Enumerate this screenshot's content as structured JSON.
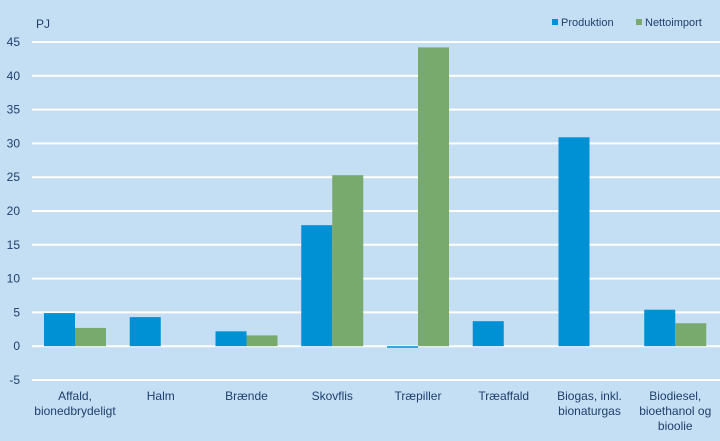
{
  "chart_data": {
    "type": "bar",
    "ylabel": "PJ",
    "ylim": [
      -5,
      45
    ],
    "yticks": [
      -5,
      0,
      5,
      10,
      15,
      20,
      25,
      30,
      35,
      40,
      45
    ],
    "grid": true,
    "legend_position": "top-right",
    "categories": [
      [
        "Affald,",
        "bionedbrydeligt"
      ],
      [
        "Halm"
      ],
      [
        "Brænde"
      ],
      [
        "Skovflis"
      ],
      [
        "Træpiller"
      ],
      [
        "Træaffald"
      ],
      [
        "Biogas, inkl.",
        "bionaturgas"
      ],
      [
        "Biodiesel,",
        "bioethanol og",
        "bioolie"
      ]
    ],
    "series": [
      {
        "name": "Produktion",
        "color": "#0090d4",
        "values": [
          4.9,
          4.3,
          2.2,
          17.9,
          -0.2,
          3.7,
          30.9,
          5.4
        ]
      },
      {
        "name": "Nettoimport",
        "color": "#78aa6e",
        "values": [
          2.7,
          0,
          1.6,
          25.3,
          44.2,
          0,
          0,
          3.4
        ]
      }
    ]
  },
  "colors": {
    "background": "#c4def3",
    "grid": "#ffffff",
    "text": "#1f3f6e"
  }
}
